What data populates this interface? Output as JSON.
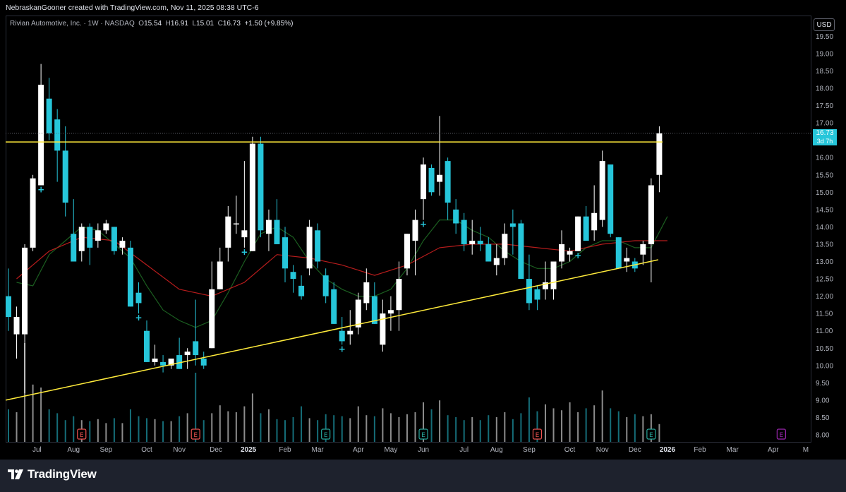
{
  "credit": "NebraskanGooner created with TradingView.com, Nov 11, 2025 08:38 UTC-6",
  "legend": {
    "symbol": "Rivian Automotive, Inc. · 1W · NASDAQ",
    "open_label": "O",
    "open": "15.54",
    "high_label": "H",
    "high": "16.91",
    "low_label": "L",
    "low": "15.01",
    "close_label": "C",
    "close": "16.73",
    "change": "+1.50 (+9.85%)"
  },
  "currency": "USD",
  "last_price": {
    "value": "16.73",
    "countdown": "3d 7h"
  },
  "brand": "TradingView",
  "colors": {
    "up": "#ffffff",
    "down": "#26c6da",
    "resistance": "#ffeb3b",
    "ma_fast": "#1b5e20",
    "ma_slow": "#b71c1c",
    "earnings_past": "#ef5350",
    "earnings_green": "#26a69a",
    "earnings_future": "#9c27b0"
  },
  "chart_data": {
    "type": "candlestick",
    "timeframe": "1W",
    "y_ticks": [
      8.0,
      8.5,
      9.0,
      9.5,
      10.0,
      10.5,
      11.0,
      11.5,
      12.0,
      12.5,
      13.0,
      13.5,
      14.0,
      14.5,
      15.0,
      15.5,
      16.0,
      16.5,
      17.0,
      17.5,
      18.0,
      18.5,
      19.0,
      19.5
    ],
    "ylim": [
      7.7,
      20.0
    ],
    "x_tick_labels": [
      "Jul",
      "Aug",
      "Sep",
      "Oct",
      "Nov",
      "Dec",
      "2025",
      "Feb",
      "Mar",
      "Apr",
      "May",
      "Jun",
      "Jul",
      "Aug",
      "Sep",
      "Oct",
      "Nov",
      "Dec",
      "2026",
      "Feb",
      "Mar",
      "Apr",
      "M"
    ],
    "x_tick_index": [
      3.5,
      8,
      12,
      17,
      21,
      25.5,
      29.5,
      34,
      38,
      43,
      47,
      51,
      56,
      60,
      64,
      69,
      73,
      77,
      81,
      85,
      89,
      94,
      98
    ],
    "candles": [
      {
        "o": 12.0,
        "h": 12.8,
        "l": 11.0,
        "c": 11.4
      },
      {
        "o": 10.9,
        "h": 11.7,
        "l": 10.2,
        "c": 11.4
      },
      {
        "o": 10.9,
        "h": 13.5,
        "l": 9.2,
        "c": 13.4
      },
      {
        "o": 13.4,
        "h": 15.5,
        "l": 13.3,
        "c": 15.4
      },
      {
        "o": 15.2,
        "h": 18.7,
        "l": 15.2,
        "c": 18.1
      },
      {
        "o": 17.7,
        "h": 18.3,
        "l": 16.5,
        "c": 16.7
      },
      {
        "o": 17.1,
        "h": 17.4,
        "l": 15.3,
        "c": 16.2
      },
      {
        "o": 16.2,
        "h": 16.9,
        "l": 14.3,
        "c": 14.7
      },
      {
        "o": 13.8,
        "h": 14.8,
        "l": 13.0,
        "c": 13.0
      },
      {
        "o": 13.3,
        "h": 14.1,
        "l": 13.0,
        "c": 14.0
      },
      {
        "o": 14.0,
        "h": 14.1,
        "l": 12.9,
        "c": 13.4
      },
      {
        "o": 13.6,
        "h": 14.1,
        "l": 13.4,
        "c": 13.9
      },
      {
        "o": 13.9,
        "h": 14.2,
        "l": 13.8,
        "c": 14.1
      },
      {
        "o": 14.0,
        "h": 14.0,
        "l": 13.2,
        "c": 13.3
      },
      {
        "o": 13.4,
        "h": 13.7,
        "l": 13.2,
        "c": 13.6
      },
      {
        "o": 13.4,
        "h": 13.6,
        "l": 11.7,
        "c": 11.7
      },
      {
        "o": 12.1,
        "h": 12.4,
        "l": 11.5,
        "c": 11.8
      },
      {
        "o": 11.0,
        "h": 11.3,
        "l": 10.1,
        "c": 10.1
      },
      {
        "o": 10.1,
        "h": 10.6,
        "l": 10.0,
        "c": 10.2
      },
      {
        "o": 10.1,
        "h": 10.3,
        "l": 9.8,
        "c": 10.0
      },
      {
        "o": 10.0,
        "h": 10.2,
        "l": 9.9,
        "c": 10.2
      },
      {
        "o": 10.3,
        "h": 10.8,
        "l": 9.9,
        "c": 9.9
      },
      {
        "o": 10.3,
        "h": 10.5,
        "l": 9.9,
        "c": 10.4
      },
      {
        "o": 10.7,
        "h": 11.9,
        "l": 10.0,
        "c": 10.3
      },
      {
        "o": 10.2,
        "h": 10.4,
        "l": 9.9,
        "c": 10.0
      },
      {
        "o": 10.5,
        "h": 13.0,
        "l": 10.5,
        "c": 12.2
      },
      {
        "o": 12.2,
        "h": 13.4,
        "l": 12.2,
        "c": 13.0
      },
      {
        "o": 13.4,
        "h": 14.6,
        "l": 13.0,
        "c": 14.3
      },
      {
        "o": 14.1,
        "h": 14.9,
        "l": 13.8,
        "c": 14.1
      },
      {
        "o": 13.7,
        "h": 15.9,
        "l": 13.4,
        "c": 13.9
      },
      {
        "o": 13.3,
        "h": 16.6,
        "l": 13.3,
        "c": 16.4
      },
      {
        "o": 16.4,
        "h": 16.6,
        "l": 13.7,
        "c": 13.9
      },
      {
        "o": 13.8,
        "h": 14.5,
        "l": 13.3,
        "c": 14.2
      },
      {
        "o": 14.2,
        "h": 14.8,
        "l": 13.5,
        "c": 13.5
      },
      {
        "o": 13.7,
        "h": 14.0,
        "l": 12.4,
        "c": 12.8
      },
      {
        "o": 12.7,
        "h": 12.9,
        "l": 12.1,
        "c": 12.5
      },
      {
        "o": 12.3,
        "h": 12.6,
        "l": 11.9,
        "c": 12.0
      },
      {
        "o": 12.8,
        "h": 14.2,
        "l": 12.6,
        "c": 14.0
      },
      {
        "o": 13.9,
        "h": 14.1,
        "l": 12.8,
        "c": 13.0
      },
      {
        "o": 12.6,
        "h": 12.8,
        "l": 11.8,
        "c": 12.0
      },
      {
        "o": 12.2,
        "h": 12.4,
        "l": 11.2,
        "c": 11.2
      },
      {
        "o": 11.0,
        "h": 11.4,
        "l": 10.6,
        "c": 10.7
      },
      {
        "o": 10.9,
        "h": 11.6,
        "l": 10.6,
        "c": 11.0
      },
      {
        "o": 11.1,
        "h": 12.1,
        "l": 10.9,
        "c": 11.9
      },
      {
        "o": 11.8,
        "h": 12.8,
        "l": 11.6,
        "c": 12.4
      },
      {
        "o": 12.0,
        "h": 12.4,
        "l": 11.2,
        "c": 11.2
      },
      {
        "o": 10.6,
        "h": 11.9,
        "l": 10.4,
        "c": 11.5
      },
      {
        "o": 11.5,
        "h": 12.0,
        "l": 11.0,
        "c": 11.6
      },
      {
        "o": 11.6,
        "h": 13.0,
        "l": 11.0,
        "c": 12.5
      },
      {
        "o": 12.8,
        "h": 13.8,
        "l": 12.6,
        "c": 13.8
      },
      {
        "o": 13.6,
        "h": 14.5,
        "l": 12.6,
        "c": 14.2
      },
      {
        "o": 14.8,
        "h": 16.0,
        "l": 14.2,
        "c": 15.8
      },
      {
        "o": 15.7,
        "h": 15.8,
        "l": 14.9,
        "c": 15.0
      },
      {
        "o": 15.3,
        "h": 17.2,
        "l": 14.9,
        "c": 15.5
      },
      {
        "o": 15.9,
        "h": 16.0,
        "l": 14.2,
        "c": 14.7
      },
      {
        "o": 14.5,
        "h": 14.8,
        "l": 13.8,
        "c": 14.1
      },
      {
        "o": 14.2,
        "h": 14.4,
        "l": 13.3,
        "c": 13.5
      },
      {
        "o": 13.5,
        "h": 14.2,
        "l": 13.2,
        "c": 13.6
      },
      {
        "o": 13.6,
        "h": 14.0,
        "l": 13.3,
        "c": 13.5
      },
      {
        "o": 13.5,
        "h": 13.7,
        "l": 13.1,
        "c": 13.0
      },
      {
        "o": 12.9,
        "h": 13.5,
        "l": 12.6,
        "c": 13.1
      },
      {
        "o": 13.1,
        "h": 14.1,
        "l": 12.9,
        "c": 13.8
      },
      {
        "o": 14.1,
        "h": 14.5,
        "l": 13.2,
        "c": 14.0
      },
      {
        "o": 14.1,
        "h": 14.2,
        "l": 12.5,
        "c": 12.5
      },
      {
        "o": 12.5,
        "h": 13.2,
        "l": 11.6,
        "c": 11.8
      },
      {
        "o": 12.2,
        "h": 12.3,
        "l": 11.6,
        "c": 11.9
      },
      {
        "o": 12.2,
        "h": 13.0,
        "l": 11.9,
        "c": 12.4
      },
      {
        "o": 12.2,
        "h": 13.0,
        "l": 11.9,
        "c": 13.0
      },
      {
        "o": 13.0,
        "h": 13.9,
        "l": 12.8,
        "c": 13.5
      },
      {
        "o": 13.2,
        "h": 13.4,
        "l": 13.0,
        "c": 13.3
      },
      {
        "o": 13.3,
        "h": 14.3,
        "l": 13.3,
        "c": 14.3
      },
      {
        "o": 14.3,
        "h": 14.6,
        "l": 13.6,
        "c": 13.6
      },
      {
        "o": 13.9,
        "h": 15.2,
        "l": 13.6,
        "c": 14.4
      },
      {
        "o": 14.2,
        "h": 16.2,
        "l": 14.0,
        "c": 15.9
      },
      {
        "o": 15.8,
        "h": 15.8,
        "l": 13.7,
        "c": 13.8
      },
      {
        "o": 13.7,
        "h": 13.7,
        "l": 12.8,
        "c": 12.8
      },
      {
        "o": 13.0,
        "h": 13.4,
        "l": 12.7,
        "c": 13.1
      },
      {
        "o": 13.0,
        "h": 13.1,
        "l": 12.7,
        "c": 12.8
      },
      {
        "o": 13.2,
        "h": 13.6,
        "l": 12.9,
        "c": 13.5
      },
      {
        "o": 13.5,
        "h": 15.4,
        "l": 12.4,
        "c": 15.2
      },
      {
        "o": 15.5,
        "h": 16.9,
        "l": 15.0,
        "c": 16.7
      }
    ],
    "volume": [
      0.33,
      0.3,
      1.0,
      0.58,
      0.55,
      0.33,
      0.29,
      0.22,
      0.26,
      0.22,
      0.21,
      0.23,
      0.19,
      0.24,
      0.19,
      0.33,
      0.26,
      0.24,
      0.23,
      0.21,
      0.21,
      0.26,
      0.29,
      0.7,
      0.22,
      0.29,
      0.37,
      0.31,
      0.3,
      0.36,
      0.49,
      0.29,
      0.33,
      0.23,
      0.22,
      0.25,
      0.36,
      0.24,
      0.22,
      0.28,
      0.27,
      0.26,
      0.24,
      0.36,
      0.27,
      0.26,
      0.34,
      0.29,
      0.25,
      0.28,
      0.3,
      0.4,
      0.33,
      0.42,
      0.27,
      0.25,
      0.22,
      0.25,
      0.22,
      0.27,
      0.25,
      0.3,
      0.23,
      0.29,
      0.45,
      0.31,
      0.38,
      0.34,
      0.32,
      0.4,
      0.3,
      0.34,
      0.37,
      0.52,
      0.34,
      0.31,
      0.25,
      0.28,
      0.26,
      0.28,
      0.18
    ],
    "ma_fast": [
      [
        1,
        12.4
      ],
      [
        3,
        12.3
      ],
      [
        5,
        13.2
      ],
      [
        7,
        13.6
      ],
      [
        9,
        14.0
      ],
      [
        11,
        13.9
      ],
      [
        13,
        13.5
      ],
      [
        15,
        13.1
      ],
      [
        17,
        12.3
      ],
      [
        19,
        11.6
      ],
      [
        21,
        11.3
      ],
      [
        23,
        11.1
      ],
      [
        25,
        11.3
      ],
      [
        27,
        12.1
      ],
      [
        29,
        13.0
      ],
      [
        31,
        13.8
      ],
      [
        33,
        14.0
      ],
      [
        35,
        13.7
      ],
      [
        37,
        13.0
      ],
      [
        39,
        12.5
      ],
      [
        41,
        12.2
      ],
      [
        43,
        12.0
      ],
      [
        45,
        12.0
      ],
      [
        47,
        12.2
      ],
      [
        49,
        12.8
      ],
      [
        51,
        13.6
      ],
      [
        53,
        14.2
      ],
      [
        55,
        14.2
      ],
      [
        57,
        13.9
      ],
      [
        59,
        13.7
      ],
      [
        61,
        13.3
      ],
      [
        63,
        13.0
      ],
      [
        65,
        12.8
      ],
      [
        67,
        12.8
      ],
      [
        69,
        13.0
      ],
      [
        71,
        13.4
      ],
      [
        73,
        13.6
      ],
      [
        75,
        13.6
      ],
      [
        77,
        13.4
      ],
      [
        79,
        13.4
      ],
      [
        81,
        14.3
      ]
    ],
    "ma_slow": [
      [
        1,
        12.5
      ],
      [
        5,
        13.3
      ],
      [
        9,
        13.7
      ],
      [
        13,
        13.6
      ],
      [
        17,
        12.9
      ],
      [
        21,
        12.2
      ],
      [
        25,
        12.0
      ],
      [
        29,
        12.4
      ],
      [
        33,
        13.2
      ],
      [
        37,
        13.1
      ],
      [
        41,
        12.9
      ],
      [
        45,
        12.6
      ],
      [
        49,
        12.9
      ],
      [
        53,
        13.4
      ],
      [
        57,
        13.5
      ],
      [
        61,
        13.5
      ],
      [
        65,
        13.4
      ],
      [
        69,
        13.3
      ],
      [
        73,
        13.5
      ],
      [
        77,
        13.6
      ],
      [
        81,
        13.6
      ]
    ],
    "resistance": {
      "price": 16.45,
      "x_start_index": 0,
      "x_end_index": 83
    },
    "trendline": {
      "x1_index": 0,
      "y1": 9.0,
      "x2_index": 79,
      "y2": 13.05
    },
    "earnings": [
      {
        "index": 9,
        "type": "past-red"
      },
      {
        "index": 23,
        "type": "past-red"
      },
      {
        "index": 39,
        "type": "green"
      },
      {
        "index": 51,
        "type": "green"
      },
      {
        "index": 65,
        "type": "past-red"
      },
      {
        "index": 79,
        "type": "green"
      },
      {
        "index": 95,
        "type": "future"
      }
    ],
    "earnings_label": "E",
    "dividend_markers": [
      4,
      16,
      29,
      41,
      51,
      70
    ]
  }
}
